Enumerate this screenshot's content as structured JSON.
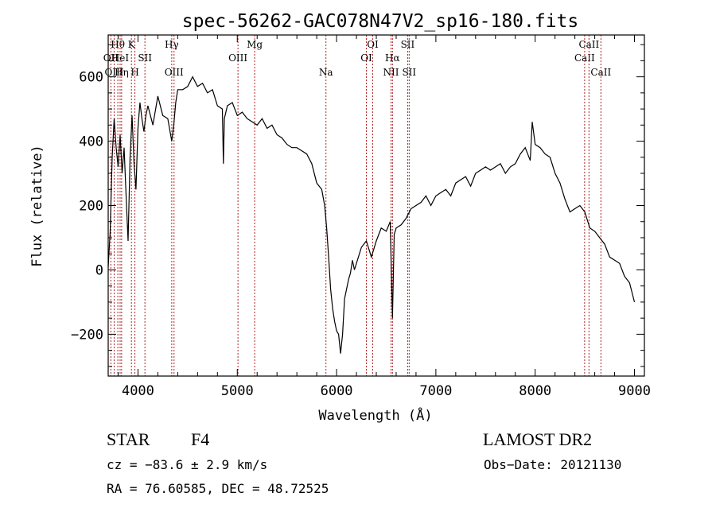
{
  "chart_data": {
    "type": "line",
    "title": "spec-56262-GAC078N47V2_sp16-180.fits",
    "xlabel": "Wavelength (Å)",
    "ylabel": "Flux (relative)",
    "xlim": [
      3700,
      9100
    ],
    "ylim": [
      -330,
      730
    ],
    "x_ticks": [
      4000,
      5000,
      6000,
      7000,
      8000,
      9000
    ],
    "x_tick_labels": [
      "4000",
      "5000",
      "6000",
      "7000",
      "8000",
      "9000"
    ],
    "y_ticks": [
      -200,
      0,
      200,
      400,
      600
    ],
    "y_tick_labels": [
      "−200",
      "0",
      "200",
      "400",
      "600"
    ],
    "series": [
      {
        "color": "#000000",
        "x": [
          3700,
          3720,
          3740,
          3760,
          3780,
          3800,
          3820,
          3840,
          3860,
          3880,
          3900,
          3920,
          3940,
          3960,
          3980,
          4000,
          4020,
          4040,
          4060,
          4080,
          4100,
          4150,
          4200,
          4250,
          4300,
          4340,
          4360,
          4380,
          4400,
          4450,
          4500,
          4550,
          4600,
          4650,
          4700,
          4750,
          4800,
          4850,
          4860,
          4870,
          4900,
          4950,
          5000,
          5050,
          5100,
          5150,
          5200,
          5250,
          5300,
          5350,
          5400,
          5450,
          5500,
          5550,
          5600,
          5650,
          5700,
          5750,
          5800,
          5850,
          5880,
          5900,
          5920,
          5940,
          5960,
          5980,
          6000,
          6020,
          6040,
          6060,
          6080,
          6100,
          6120,
          6140,
          6160,
          6180,
          6200,
          6250,
          6300,
          6350,
          6400,
          6450,
          6500,
          6540,
          6563,
          6580,
          6600,
          6650,
          6700,
          6750,
          6800,
          6850,
          6900,
          6950,
          7000,
          7050,
          7100,
          7150,
          7200,
          7250,
          7300,
          7350,
          7400,
          7450,
          7500,
          7550,
          7600,
          7650,
          7700,
          7750,
          7800,
          7850,
          7900,
          7950,
          7970,
          8000,
          8050,
          8100,
          8150,
          8200,
          8250,
          8300,
          8350,
          8400,
          8450,
          8500,
          8550,
          8600,
          8650,
          8700,
          8750,
          8800,
          8850,
          8900,
          8950,
          9000
        ],
        "y": [
          10,
          120,
          350,
          470,
          380,
          320,
          420,
          300,
          380,
          230,
          90,
          350,
          480,
          330,
          250,
          440,
          520,
          470,
          430,
          480,
          510,
          450,
          540,
          480,
          470,
          400,
          450,
          520,
          560,
          560,
          570,
          600,
          570,
          580,
          550,
          560,
          510,
          500,
          330,
          470,
          510,
          520,
          480,
          490,
          470,
          460,
          450,
          470,
          440,
          450,
          420,
          410,
          390,
          380,
          380,
          370,
          360,
          330,
          270,
          250,
          200,
          130,
          40,
          -60,
          -120,
          -160,
          -190,
          -200,
          -260,
          -200,
          -90,
          -60,
          -30,
          -10,
          30,
          0,
          20,
          70,
          90,
          40,
          90,
          130,
          120,
          150,
          -150,
          110,
          130,
          140,
          160,
          190,
          200,
          210,
          230,
          200,
          230,
          240,
          250,
          230,
          270,
          280,
          290,
          260,
          300,
          310,
          320,
          310,
          320,
          330,
          300,
          320,
          330,
          360,
          380,
          340,
          460,
          390,
          380,
          360,
          350,
          300,
          270,
          220,
          180,
          190,
          200,
          180,
          130,
          120,
          100,
          80,
          40,
          30,
          20,
          -20,
          -40,
          -100
        ]
      }
    ],
    "line_markers": [
      {
        "label": "Hθ",
        "x": 3797,
        "row": 0
      },
      {
        "label": "OII",
        "x": 3727,
        "row": 1
      },
      {
        "label": "OIII",
        "x": 3760,
        "row": 2
      },
      {
        "label": "HeI",
        "x": 3820,
        "row": 1
      },
      {
        "label": "Hη",
        "x": 3835,
        "row": 2
      },
      {
        "label": "K",
        "x": 3934,
        "row": 0
      },
      {
        "label": "H",
        "x": 3969,
        "row": 2
      },
      {
        "label": "SII",
        "x": 4070,
        "row": 1
      },
      {
        "label": "Hγ",
        "x": 4340,
        "row": 0
      },
      {
        "label": "OIII",
        "x": 4363,
        "row": 2
      },
      {
        "label": "OIII",
        "x": 5007,
        "row": 1
      },
      {
        "label": "Mg",
        "x": 5175,
        "row": 0
      },
      {
        "label": "Na",
        "x": 5893,
        "row": 2
      },
      {
        "label": "OI",
        "x": 6300,
        "row": 1
      },
      {
        "label": "OI",
        "x": 6364,
        "row": 0
      },
      {
        "label": "Hα",
        "x": 6563,
        "row": 1
      },
      {
        "label": "NII",
        "x": 6548,
        "row": 2
      },
      {
        "label": "SII",
        "x": 6716,
        "row": 0
      },
      {
        "label": "SII",
        "x": 6731,
        "row": 2
      },
      {
        "label": "CaII",
        "x": 8498,
        "row": 1
      },
      {
        "label": "CaII",
        "x": 8542,
        "row": 0
      },
      {
        "label": "CaII",
        "x": 8662,
        "row": 2
      }
    ],
    "marker_color": "#b22222",
    "grid": false
  },
  "info": {
    "class_label": "STAR",
    "subclass": "F4",
    "survey": "LAMOST DR2",
    "cz": "cz = −83.6 ± 2.9 km/s",
    "obs_date": "Obs−Date: 20121130",
    "coords": "RA =  76.60585, DEC =  48.72525"
  }
}
